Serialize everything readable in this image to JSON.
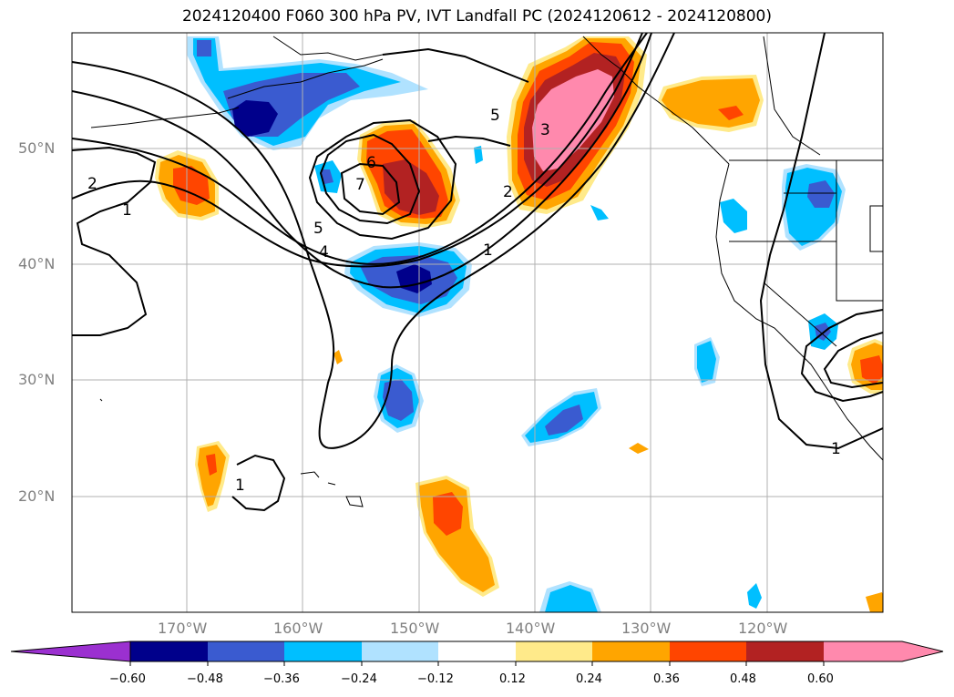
{
  "title": "2024120400 F060 300 hPa PV, IVT Landfall PC (2024120612 - 2024120800)",
  "map": {
    "lat_labels": [
      "50°N",
      "40°N",
      "30°N",
      "20°N"
    ],
    "lon_labels": [
      "170°W",
      "160°W",
      "150°W",
      "140°W",
      "130°W",
      "120°W"
    ],
    "contour_labels": [
      "2",
      "1",
      "5",
      "4",
      "6",
      "7",
      "5",
      "3",
      "2",
      "1",
      "1",
      "1"
    ]
  },
  "colorbar": {
    "ticks": [
      "−0.60",
      "−0.48",
      "−0.36",
      "−0.24",
      "−0.12",
      "0.12",
      "0.24",
      "0.36",
      "0.48",
      "0.60"
    ],
    "colors": [
      "#9b30d0",
      "#00008b",
      "#3a5bd0",
      "#00bfff",
      "#b0e2ff",
      "#ffffff",
      "#ffea8a",
      "#ffa500",
      "#ff4500",
      "#b22222",
      "#ff89ad"
    ]
  }
}
